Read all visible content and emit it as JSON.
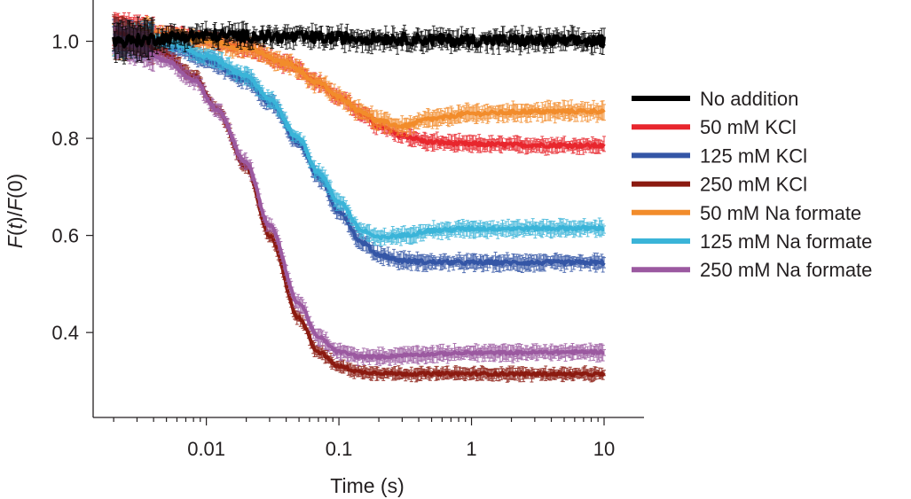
{
  "chart_data": {
    "type": "line",
    "xscale": "log",
    "xlabel": "Time (s)",
    "ylabel_parts": [
      "F",
      "(",
      "t",
      ")/",
      "F",
      "(0)"
    ],
    "xlim": [
      0.0014,
      20
    ],
    "ylim": [
      0.225,
      1.085
    ],
    "x_ticks": [
      {
        "value": 0.01,
        "label": "0.01"
      },
      {
        "value": 0.1,
        "label": "0.1"
      },
      {
        "value": 1,
        "label": "1"
      },
      {
        "value": 10,
        "label": "10"
      }
    ],
    "y_ticks": [
      {
        "value": 0.4,
        "label": "0.4"
      },
      {
        "value": 0.6,
        "label": "0.6"
      },
      {
        "value": 0.8,
        "label": "0.8"
      },
      {
        "value": 1.0,
        "label": "1.0"
      }
    ],
    "x_range": [
      0.002,
      10
    ],
    "series": [
      {
        "name": "No addition",
        "color": "#000000",
        "noise": 0.012,
        "band": 0.014,
        "points": [
          [
            0.002,
            1.0
          ],
          [
            0.01,
            1.012
          ],
          [
            0.1,
            1.007
          ],
          [
            1,
            1.002
          ],
          [
            10,
            1.0
          ]
        ]
      },
      {
        "name": "50 mM KCl",
        "color": "#e8262d",
        "noise": 0.004,
        "band": 0.012,
        "points": [
          [
            0.002,
            1.02
          ],
          [
            0.005,
            1.015
          ],
          [
            0.01,
            1.003
          ],
          [
            0.02,
            0.985
          ],
          [
            0.04,
            0.955
          ],
          [
            0.07,
            0.915
          ],
          [
            0.1,
            0.885
          ],
          [
            0.15,
            0.85
          ],
          [
            0.2,
            0.825
          ],
          [
            0.3,
            0.805
          ],
          [
            0.5,
            0.792
          ],
          [
            1,
            0.788
          ],
          [
            3,
            0.786
          ],
          [
            10,
            0.785
          ]
        ]
      },
      {
        "name": "125 mM KCl",
        "color": "#3456a6",
        "noise": 0.004,
        "band": 0.012,
        "points": [
          [
            0.002,
            1.01
          ],
          [
            0.004,
            1.0
          ],
          [
            0.006,
            0.985
          ],
          [
            0.01,
            0.96
          ],
          [
            0.02,
            0.92
          ],
          [
            0.03,
            0.875
          ],
          [
            0.05,
            0.79
          ],
          [
            0.07,
            0.72
          ],
          [
            0.1,
            0.65
          ],
          [
            0.15,
            0.585
          ],
          [
            0.2,
            0.56
          ],
          [
            0.3,
            0.548
          ],
          [
            0.5,
            0.545
          ],
          [
            1,
            0.544
          ],
          [
            10,
            0.544
          ]
        ]
      },
      {
        "name": "250 mM KCl",
        "color": "#8b1a10",
        "noise": 0.003,
        "band": 0.01,
        "points": [
          [
            0.002,
            1.02
          ],
          [
            0.003,
            1.005
          ],
          [
            0.005,
            0.97
          ],
          [
            0.008,
            0.93
          ],
          [
            0.012,
            0.86
          ],
          [
            0.02,
            0.74
          ],
          [
            0.03,
            0.6
          ],
          [
            0.05,
            0.43
          ],
          [
            0.07,
            0.36
          ],
          [
            0.1,
            0.33
          ],
          [
            0.15,
            0.318
          ],
          [
            0.3,
            0.315
          ],
          [
            1,
            0.315
          ],
          [
            10,
            0.314
          ]
        ]
      },
      {
        "name": "50 mM Na formate",
        "color": "#f28c2b",
        "noise": 0.004,
        "band": 0.014,
        "points": [
          [
            0.002,
            1.0
          ],
          [
            0.005,
            1.01
          ],
          [
            0.01,
            1.0
          ],
          [
            0.02,
            0.985
          ],
          [
            0.04,
            0.955
          ],
          [
            0.07,
            0.915
          ],
          [
            0.1,
            0.885
          ],
          [
            0.15,
            0.855
          ],
          [
            0.2,
            0.835
          ],
          [
            0.3,
            0.825
          ],
          [
            0.5,
            0.84
          ],
          [
            1,
            0.851
          ],
          [
            3,
            0.855
          ],
          [
            10,
            0.856
          ]
        ]
      },
      {
        "name": "125 mM Na formate",
        "color": "#3ab4d8",
        "noise": 0.004,
        "band": 0.012,
        "points": [
          [
            0.002,
            1.0
          ],
          [
            0.005,
            1.0
          ],
          [
            0.01,
            0.97
          ],
          [
            0.02,
            0.93
          ],
          [
            0.03,
            0.88
          ],
          [
            0.05,
            0.8
          ],
          [
            0.07,
            0.73
          ],
          [
            0.1,
            0.67
          ],
          [
            0.15,
            0.61
          ],
          [
            0.2,
            0.595
          ],
          [
            0.3,
            0.6
          ],
          [
            0.5,
            0.61
          ],
          [
            1,
            0.614
          ],
          [
            10,
            0.615
          ]
        ]
      },
      {
        "name": "250 mM Na formate",
        "color": "#9b59a0",
        "noise": 0.003,
        "band": 0.012,
        "points": [
          [
            0.002,
            1.0
          ],
          [
            0.003,
            0.99
          ],
          [
            0.005,
            0.96
          ],
          [
            0.008,
            0.92
          ],
          [
            0.012,
            0.86
          ],
          [
            0.02,
            0.75
          ],
          [
            0.03,
            0.62
          ],
          [
            0.05,
            0.46
          ],
          [
            0.07,
            0.39
          ],
          [
            0.1,
            0.36
          ],
          [
            0.15,
            0.35
          ],
          [
            0.2,
            0.35
          ],
          [
            0.4,
            0.355
          ],
          [
            1,
            0.358
          ],
          [
            10,
            0.36
          ]
        ]
      }
    ],
    "legend_position": "right",
    "grid": false
  }
}
